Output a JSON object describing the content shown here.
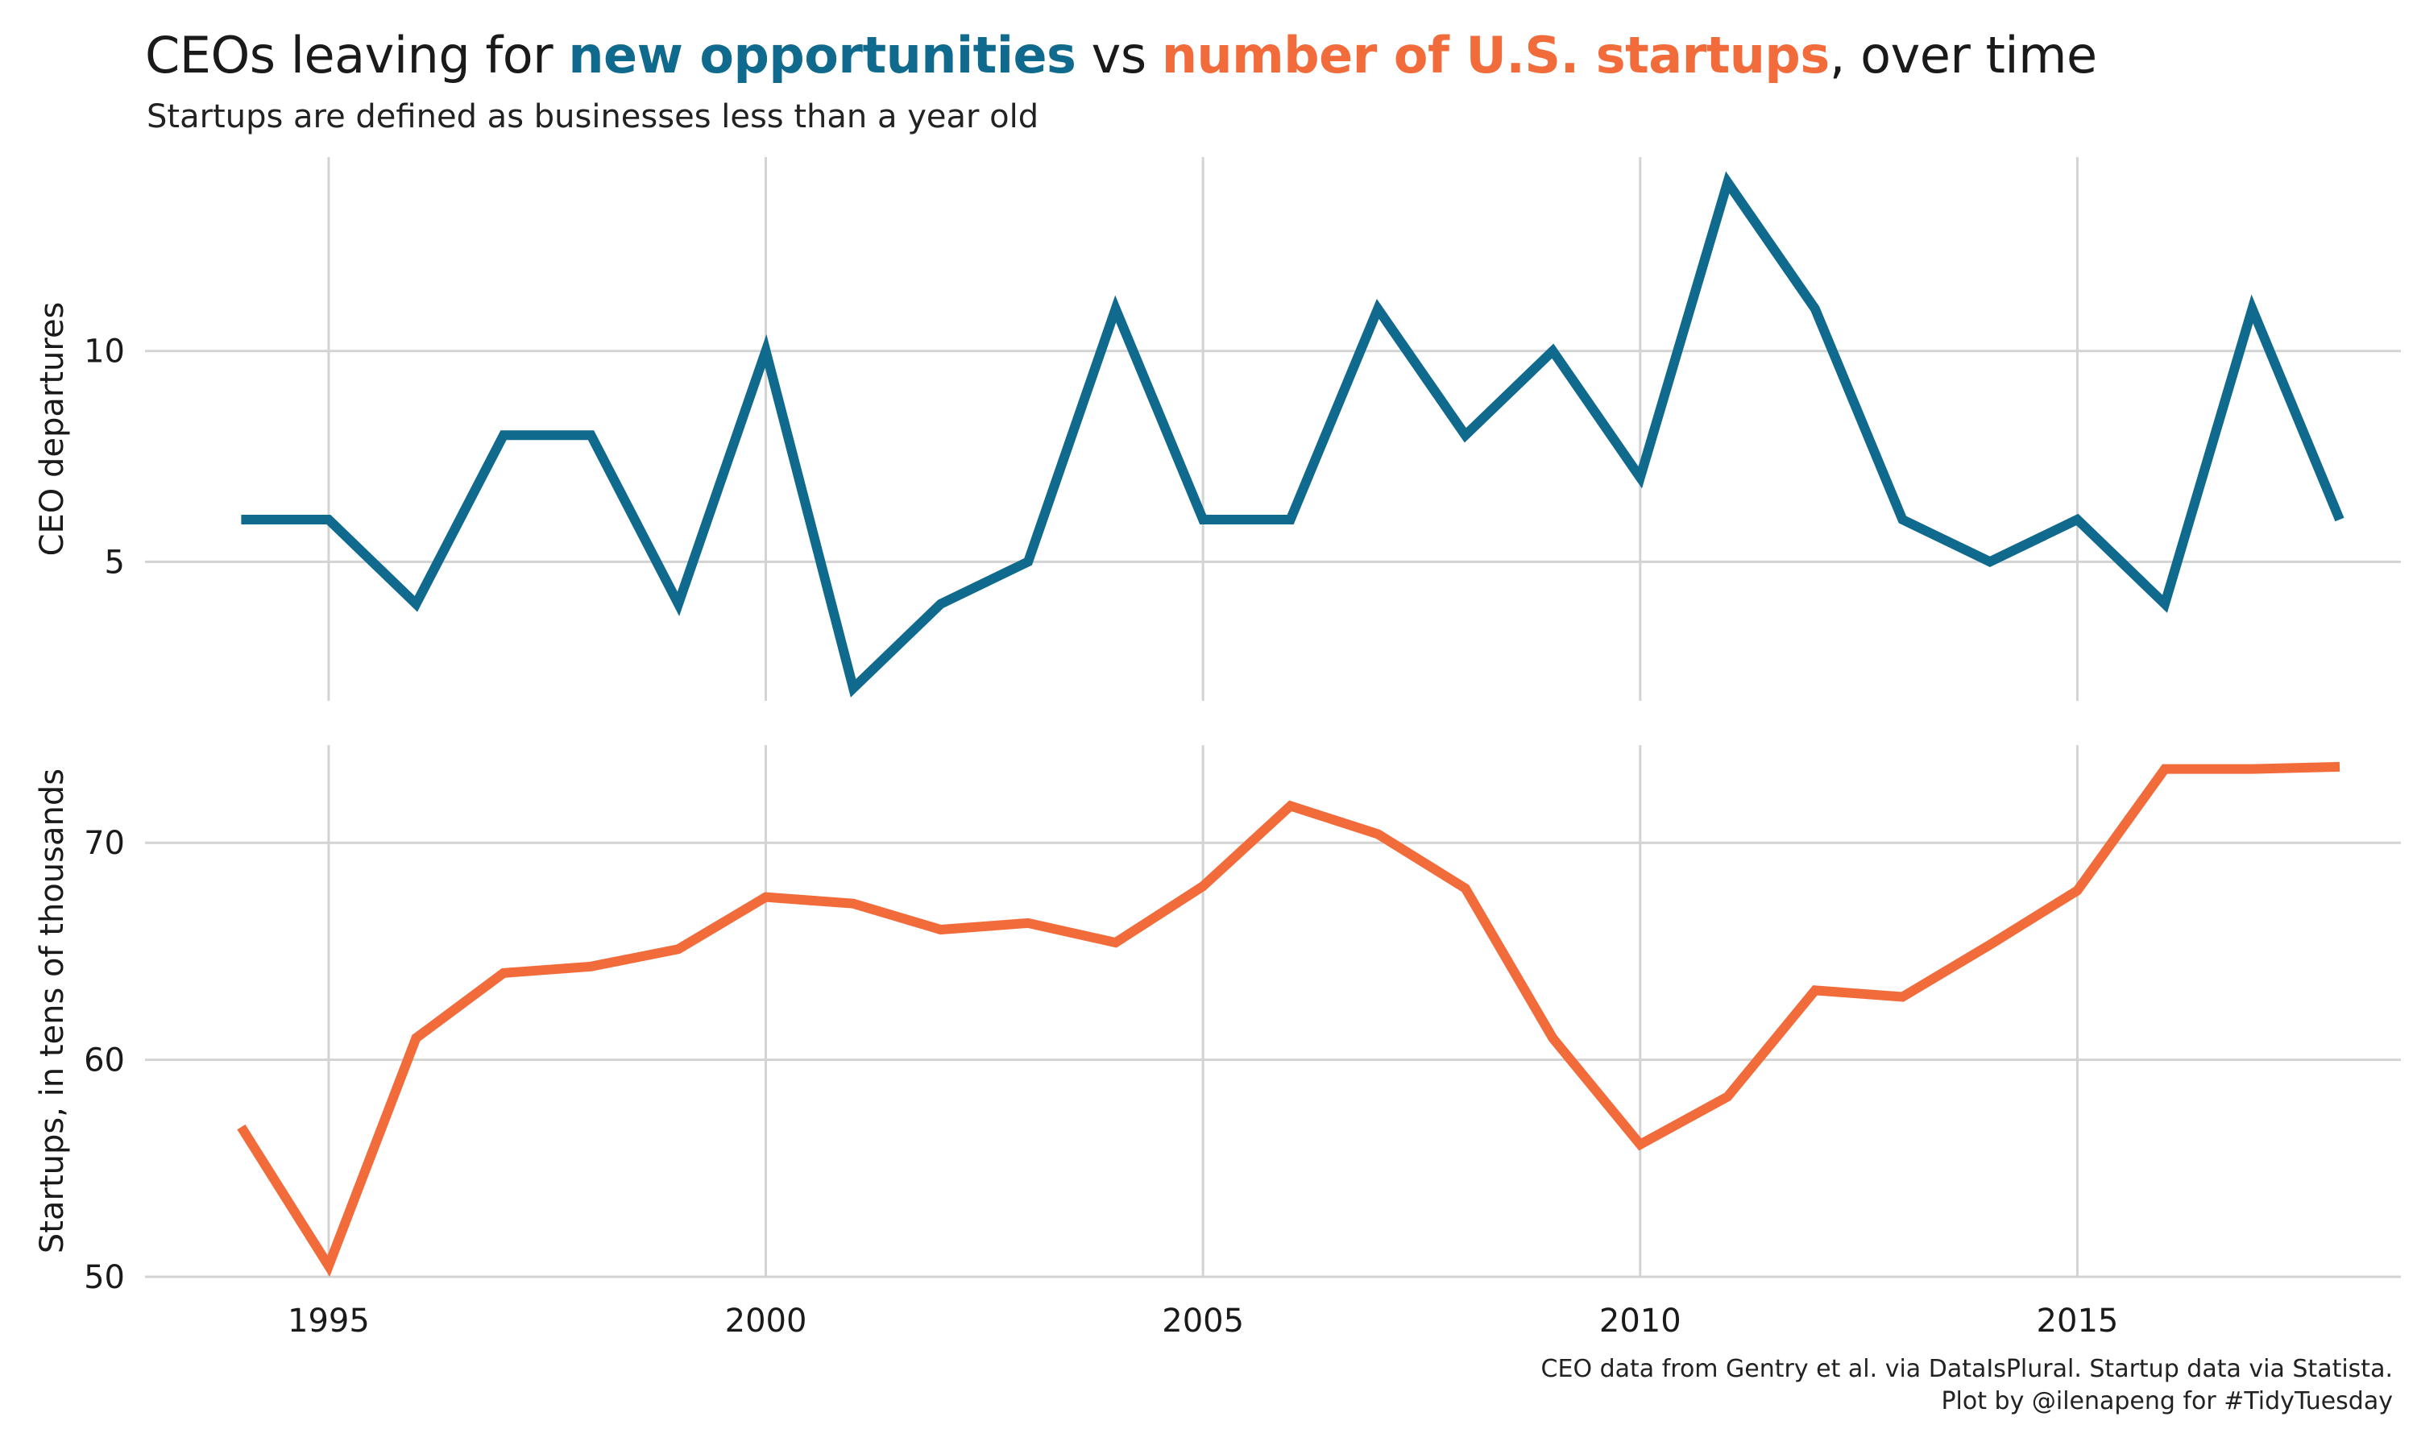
{
  "title": {
    "prefix": "CEOs leaving for ",
    "highlight1": "new opportunities",
    "middle": " vs ",
    "highlight2": "number of U.S. startups",
    "suffix": ", over time"
  },
  "subtitle": "Startups are defined as businesses less than a year old",
  "caption": {
    "line1": "CEO data from Gentry et al. via DataIsPlural. Startup data via Statista.",
    "line2": "Plot by @ilenapeng for #TidyTuesday"
  },
  "colors": {
    "ceo": "#0f6a8e",
    "startups": "#f26b3a",
    "grid": "#d3d3d3",
    "text": "#1a1a1a"
  },
  "chart_data": [
    {
      "type": "line",
      "ylabel": "CEO departures",
      "ylim": [
        1.7,
        14.6
      ],
      "yticks": [
        5,
        10
      ],
      "xlim": [
        1992.9,
        2018.7
      ],
      "xticks": [
        1995,
        2000,
        2005,
        2010,
        2015
      ],
      "grid": true,
      "series": [
        {
          "x": [
            1994,
            1995,
            1996,
            1997,
            1998,
            1999,
            2000,
            2001,
            2002,
            2003,
            2004,
            2005,
            2006,
            2007,
            2008,
            2009,
            2010,
            2011,
            2012,
            2013,
            2014,
            2015,
            2016,
            2017,
            2018
          ],
          "values": [
            6,
            6,
            4,
            8,
            8,
            4,
            10,
            2,
            4,
            5,
            11,
            6,
            6,
            11,
            8,
            10,
            7,
            14,
            11,
            6,
            5,
            6,
            4,
            11,
            6
          ]
        }
      ]
    },
    {
      "type": "line",
      "ylabel": "Startups, in tens of thousands",
      "ylim": [
        50,
        74.5
      ],
      "yticks": [
        50,
        60,
        70
      ],
      "xlim": [
        1992.9,
        2018.7
      ],
      "xticks": [
        1995,
        2000,
        2005,
        2010,
        2015
      ],
      "xticklabels": [
        "1995",
        "2000",
        "2005",
        "2010",
        "2015"
      ],
      "grid": true,
      "series": [
        {
          "x": [
            1994,
            1995,
            1996,
            1997,
            1998,
            1999,
            2000,
            2001,
            2002,
            2003,
            2004,
            2005,
            2006,
            2007,
            2008,
            2009,
            2010,
            2011,
            2012,
            2013,
            2014,
            2015,
            2016,
            2017,
            2018
          ],
          "values": [
            56.9,
            50.5,
            61.0,
            64.0,
            64.3,
            65.1,
            67.5,
            67.2,
            66.0,
            66.3,
            65.4,
            68.0,
            71.7,
            70.4,
            67.9,
            61.0,
            56.1,
            58.3,
            63.2,
            62.9,
            65.3,
            67.8,
            73.4,
            73.4,
            73.5
          ]
        }
      ]
    }
  ]
}
